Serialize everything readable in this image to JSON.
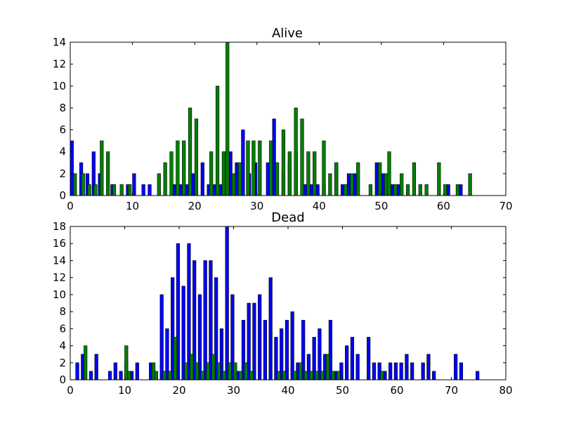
{
  "chart_data": [
    {
      "type": "bar",
      "title": "Alive",
      "xlim": [
        0,
        70
      ],
      "ylim": [
        0,
        14
      ],
      "xticks": [
        "0",
        "10",
        "20",
        "30",
        "40",
        "50",
        "60",
        "70"
      ],
      "yticks": [
        "0",
        "2",
        "4",
        "6",
        "8",
        "10",
        "12",
        "14"
      ],
      "grid": false,
      "series": [
        {
          "color": "#0000ff",
          "points": [
            [
              0,
              5
            ],
            [
              1.5,
              3
            ],
            [
              2.5,
              2
            ],
            [
              3.5,
              4
            ],
            [
              4.5,
              2
            ],
            [
              6.5,
              1
            ],
            [
              9,
              1
            ],
            [
              10,
              2
            ],
            [
              11.5,
              1
            ],
            [
              12.5,
              1
            ],
            [
              16.5,
              1
            ],
            [
              17.5,
              1
            ],
            [
              18.5,
              1
            ],
            [
              19.5,
              2
            ],
            [
              21,
              3
            ],
            [
              22,
              1
            ],
            [
              23,
              1
            ],
            [
              24,
              1
            ],
            [
              25.5,
              4
            ],
            [
              26.5,
              3
            ],
            [
              27.5,
              6
            ],
            [
              28.5,
              2
            ],
            [
              29.5,
              3
            ],
            [
              31.5,
              3
            ],
            [
              32.5,
              7
            ],
            [
              34,
              2
            ],
            [
              35,
              3
            ],
            [
              36,
              4
            ],
            [
              37.5,
              1
            ],
            [
              38.5,
              1
            ],
            [
              39.5,
              1
            ],
            [
              40.5,
              1
            ],
            [
              42.5,
              3
            ],
            [
              43.5,
              1
            ],
            [
              44.5,
              2
            ],
            [
              45.5,
              2
            ],
            [
              49,
              3
            ],
            [
              50,
              2
            ],
            [
              51.5,
              1
            ],
            [
              52.5,
              1
            ],
            [
              60.5,
              1
            ],
            [
              62.5,
              1
            ]
          ]
        },
        {
          "color": "#008000",
          "points": [
            [
              0.5,
              2
            ],
            [
              1.8,
              2
            ],
            [
              2.8,
              1
            ],
            [
              3.8,
              1
            ],
            [
              4.8,
              5
            ],
            [
              5.8,
              4
            ],
            [
              6.8,
              1
            ],
            [
              8,
              1
            ],
            [
              9.3,
              1
            ],
            [
              14,
              2
            ],
            [
              15,
              3
            ],
            [
              16,
              4
            ],
            [
              17,
              5
            ],
            [
              18,
              5
            ],
            [
              19,
              8
            ],
            [
              20,
              7
            ],
            [
              22.4,
              4
            ],
            [
              23.4,
              10
            ],
            [
              24.4,
              4
            ],
            [
              25,
              14
            ],
            [
              26,
              2
            ],
            [
              27,
              3
            ],
            [
              28.3,
              5
            ],
            [
              29.2,
              5
            ],
            [
              30.2,
              5
            ],
            [
              32,
              5
            ],
            [
              33,
              3
            ],
            [
              34,
              6
            ],
            [
              35,
              4
            ],
            [
              36,
              8
            ],
            [
              37,
              7
            ],
            [
              38,
              4
            ],
            [
              39,
              4
            ],
            [
              40.5,
              5
            ],
            [
              41.5,
              2
            ],
            [
              42.5,
              3
            ],
            [
              44,
              1
            ],
            [
              45,
              2
            ],
            [
              46,
              3
            ],
            [
              48,
              1
            ],
            [
              49.5,
              3
            ],
            [
              50.5,
              2
            ],
            [
              51,
              4
            ],
            [
              52,
              1
            ],
            [
              53,
              2
            ],
            [
              54,
              1
            ],
            [
              55,
              3
            ],
            [
              56,
              1
            ],
            [
              57,
              1
            ],
            [
              59,
              3
            ],
            [
              60,
              1
            ],
            [
              62,
              1
            ],
            [
              64,
              2
            ]
          ]
        }
      ]
    },
    {
      "type": "bar",
      "title": "Dead",
      "xlim": [
        0,
        80
      ],
      "ylim": [
        0,
        18
      ],
      "xticks": [
        "0",
        "10",
        "20",
        "30",
        "40",
        "50",
        "60",
        "70",
        "80"
      ],
      "yticks": [
        "0",
        "2",
        "4",
        "6",
        "8",
        "10",
        "12",
        "14",
        "16",
        "18"
      ],
      "grid": false,
      "series": [
        {
          "color": "#0000ff",
          "points": [
            [
              1,
              2
            ],
            [
              2,
              3
            ],
            [
              3.5,
              1
            ],
            [
              4.5,
              3
            ],
            [
              7,
              1
            ],
            [
              8,
              2
            ],
            [
              9,
              1
            ],
            [
              10,
              2
            ],
            [
              11,
              1
            ],
            [
              12,
              2
            ],
            [
              14.5,
              2
            ],
            [
              16.5,
              10
            ],
            [
              17.5,
              6
            ],
            [
              18.5,
              12
            ],
            [
              19.5,
              16
            ],
            [
              20.5,
              11
            ],
            [
              21.5,
              16
            ],
            [
              22.5,
              14
            ],
            [
              23.5,
              10
            ],
            [
              24.5,
              14
            ],
            [
              25.5,
              14
            ],
            [
              26.5,
              12
            ],
            [
              27.5,
              6
            ],
            [
              28.5,
              18
            ],
            [
              29.5,
              10
            ],
            [
              30.5,
              1
            ],
            [
              31.5,
              7
            ],
            [
              32.5,
              9
            ],
            [
              33.5,
              9
            ],
            [
              34.5,
              10
            ],
            [
              35.5,
              7
            ],
            [
              36.5,
              12
            ],
            [
              37.5,
              5
            ],
            [
              38.5,
              6
            ],
            [
              39.5,
              7
            ],
            [
              40.5,
              8
            ],
            [
              41.5,
              2
            ],
            [
              42.5,
              7
            ],
            [
              43.5,
              3
            ],
            [
              44.5,
              5
            ],
            [
              45.5,
              6
            ],
            [
              46.5,
              3
            ],
            [
              47.5,
              7
            ],
            [
              48.5,
              1
            ],
            [
              49.5,
              2
            ],
            [
              50.5,
              4
            ],
            [
              51.5,
              5
            ],
            [
              52.5,
              3
            ],
            [
              54.5,
              5
            ],
            [
              55.5,
              2
            ],
            [
              56.5,
              2
            ],
            [
              57.5,
              1
            ],
            [
              58.5,
              2
            ],
            [
              59.5,
              2
            ],
            [
              60.5,
              2
            ],
            [
              61.5,
              3
            ],
            [
              62.5,
              2
            ],
            [
              64.5,
              2
            ],
            [
              65.5,
              3
            ],
            [
              66.5,
              1
            ],
            [
              70.5,
              3
            ],
            [
              71.5,
              2
            ],
            [
              74.5,
              1
            ]
          ]
        },
        {
          "color": "#008000",
          "points": [
            [
              2.5,
              4
            ],
            [
              10,
              4
            ],
            [
              10.5,
              1
            ],
            [
              15,
              2
            ],
            [
              15.5,
              1
            ],
            [
              17,
              1
            ],
            [
              18,
              1
            ],
            [
              19,
              5
            ],
            [
              21,
              2
            ],
            [
              22,
              3
            ],
            [
              23,
              2
            ],
            [
              24,
              1
            ],
            [
              25,
              2
            ],
            [
              26,
              3
            ],
            [
              27,
              2
            ],
            [
              28,
              1
            ],
            [
              29,
              2
            ],
            [
              30,
              2
            ],
            [
              31,
              1
            ],
            [
              32,
              2
            ],
            [
              33,
              1
            ],
            [
              38,
              1
            ],
            [
              39,
              1
            ],
            [
              41,
              1
            ],
            [
              42,
              2
            ],
            [
              43,
              1
            ],
            [
              44,
              1
            ],
            [
              45,
              1
            ],
            [
              46,
              1
            ],
            [
              47,
              3
            ],
            [
              48,
              1
            ],
            [
              49,
              1
            ],
            [
              57,
              1
            ]
          ]
        }
      ]
    }
  ]
}
